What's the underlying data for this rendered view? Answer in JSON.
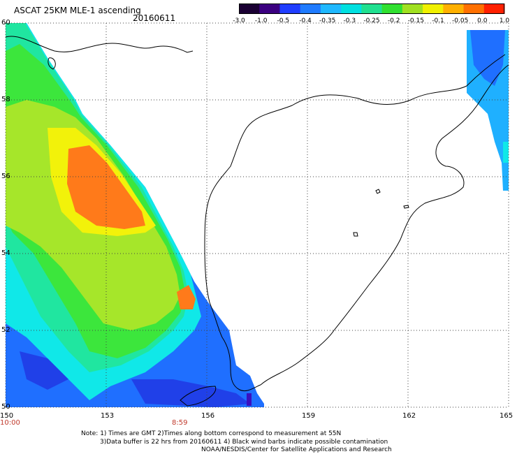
{
  "header": {
    "title": "ASCAT 25KM MLE-1 ascending",
    "date": "20160611"
  },
  "colorbar": {
    "labels": [
      "-3.0",
      "-1.0",
      "-0.5",
      "-0.4",
      "-0.35",
      "-0.3",
      "-0.25",
      "-0.2",
      "-0.15",
      "-0.1",
      "-0.05",
      "0.0",
      "1.0"
    ],
    "colors": [
      "#1a0033",
      "#3b0080",
      "#1f3dff",
      "#1f7bff",
      "#1fb8ff",
      "#00e0e0",
      "#20e090",
      "#30e030",
      "#a0e020",
      "#f0f000",
      "#ffb000",
      "#ff7000",
      "#ff2000"
    ]
  },
  "axes": {
    "lon_labels": [
      "150",
      "153",
      "156",
      "159",
      "162",
      "165"
    ],
    "lat_labels": [
      "60",
      "58",
      "56",
      "54",
      "52",
      "50"
    ],
    "times": [
      "10:00",
      "8:59"
    ]
  },
  "notes": {
    "line1": "Note: 1) Times are GMT 2)Times along bottom correspond to measurement at 55N",
    "line2": "3)Data buffer is 22 hrs from 20160611 4) Black wind barbs indicate possible contamination",
    "line3": "NOAA/NESDIS/Center for Satellite Applications and Research"
  },
  "map_data": {
    "lon_range": [
      150,
      165
    ],
    "lat_range": [
      50,
      60
    ],
    "colors": {
      "land_line": "#000000",
      "grid": "#444444",
      "orange": "#ff7a1a",
      "yellow": "#f2f20a",
      "yellowgreen": "#a6e62a",
      "green": "#3ce63c",
      "aqua": "#20e6a0",
      "cyan": "#10e8e8",
      "lightblue": "#1fb0ff",
      "blue": "#1f6fff",
      "darkblue": "#2040e8"
    }
  }
}
